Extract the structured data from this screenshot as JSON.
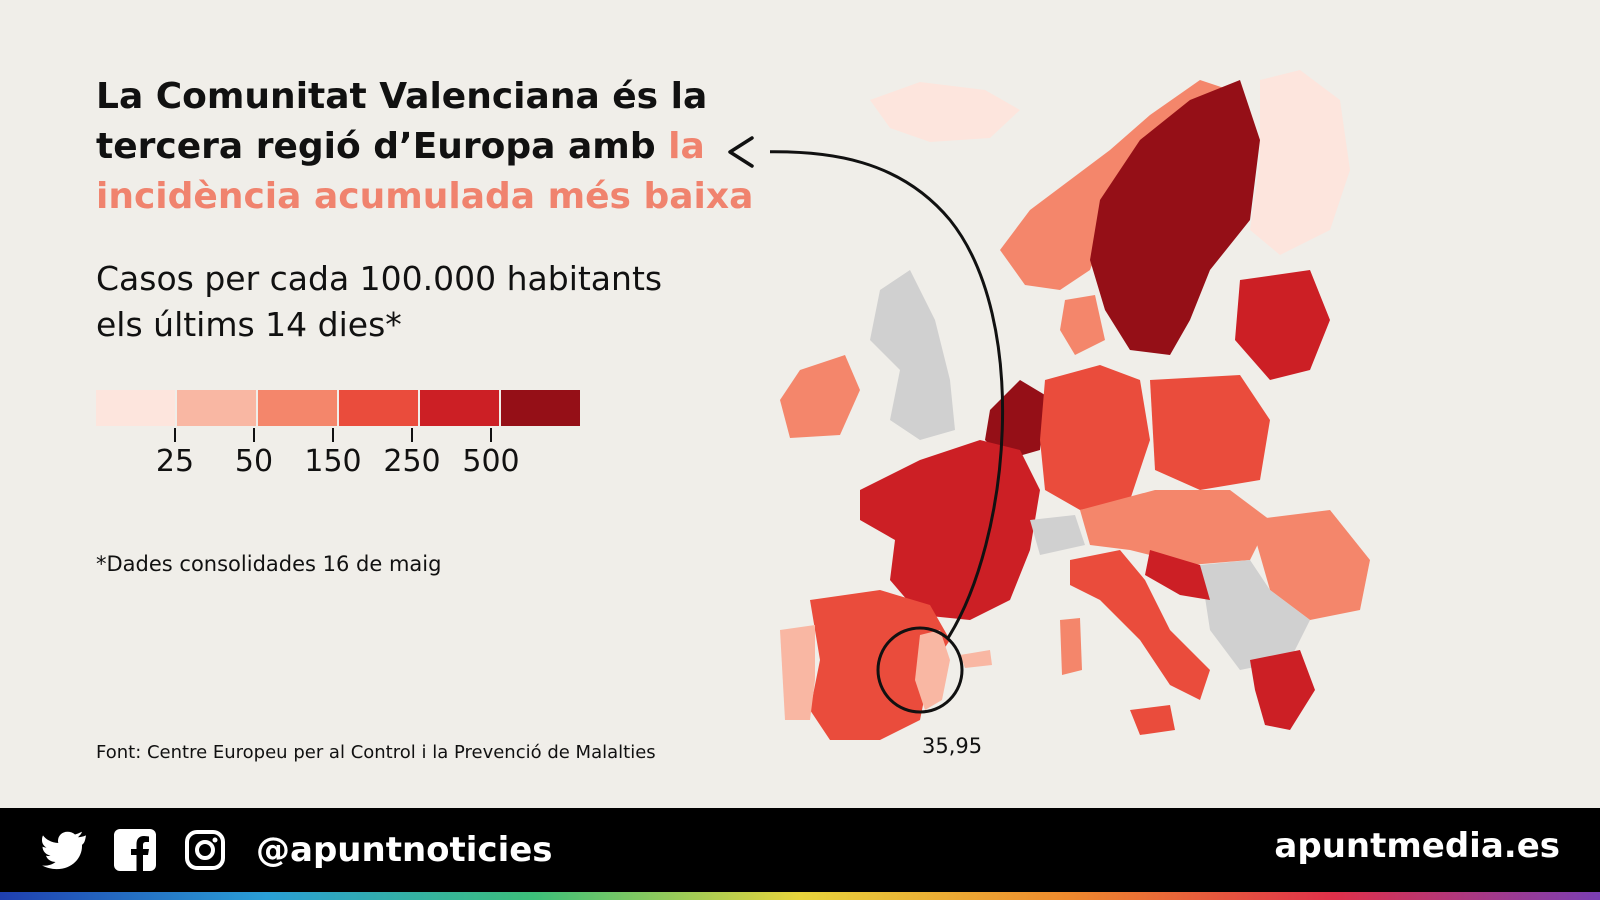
{
  "headline": {
    "part1": "La Comunitat Valenciana és la tercera regió d’Europa amb ",
    "highlight": "la incidència acumulada més baixa"
  },
  "subtitle": {
    "line1": "Casos per cada 100.000 habitants",
    "line2": "els últims 14 dies*"
  },
  "legend": {
    "colors": [
      "#fde5dd",
      "#f9b7a3",
      "#f4866b",
      "#ea4c3c",
      "#cc1f25",
      "#950f17"
    ],
    "ticks": [
      "25",
      "50",
      "150",
      "250",
      "500"
    ]
  },
  "note": "*Dades consolidades 16 de maig",
  "source": "Font: Centre Europeu per al Control i la Prevenció de Malalties",
  "map": {
    "highlight_region": "Comunitat Valenciana",
    "highlight_value": "35,95",
    "no_data_color": "#d0d0d0"
  },
  "footer": {
    "handle": "@apuntnoticies",
    "site": "apuntmedia.es",
    "icons": [
      "twitter-icon",
      "facebook-icon",
      "instagram-icon"
    ]
  }
}
